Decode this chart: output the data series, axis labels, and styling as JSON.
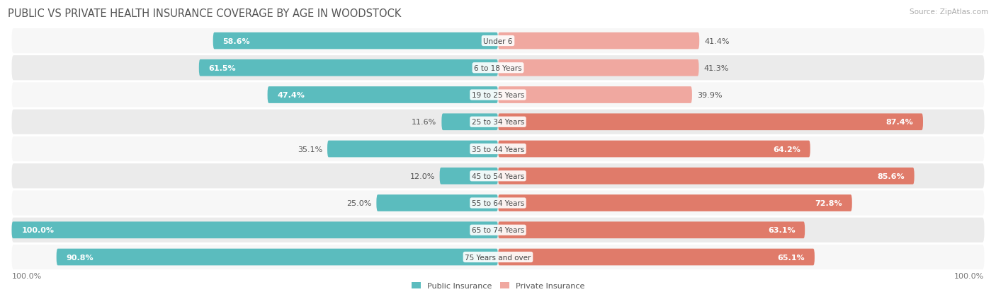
{
  "title": "PUBLIC VS PRIVATE HEALTH INSURANCE COVERAGE BY AGE IN WOODSTOCK",
  "source": "Source: ZipAtlas.com",
  "categories": [
    "Under 6",
    "6 to 18 Years",
    "19 to 25 Years",
    "25 to 34 Years",
    "35 to 44 Years",
    "45 to 54 Years",
    "55 to 64 Years",
    "65 to 74 Years",
    "75 Years and over"
  ],
  "public_values": [
    58.6,
    61.5,
    47.4,
    11.6,
    35.1,
    12.0,
    25.0,
    100.0,
    90.8
  ],
  "private_values": [
    41.4,
    41.3,
    39.9,
    87.4,
    64.2,
    85.6,
    72.8,
    63.1,
    65.1
  ],
  "public_color": "#5bbcbe",
  "private_color_light": "#f0a8a0",
  "private_color_dark": "#e07b6a",
  "public_label": "Public Insurance",
  "private_label": "Private Insurance",
  "row_bg_odd": "#f7f7f7",
  "row_bg_even": "#ebebeb",
  "max_value": 100.0,
  "title_fontsize": 10.5,
  "label_fontsize": 8.0,
  "source_fontsize": 7.5,
  "private_threshold": 60.0,
  "public_threshold": 40.0
}
